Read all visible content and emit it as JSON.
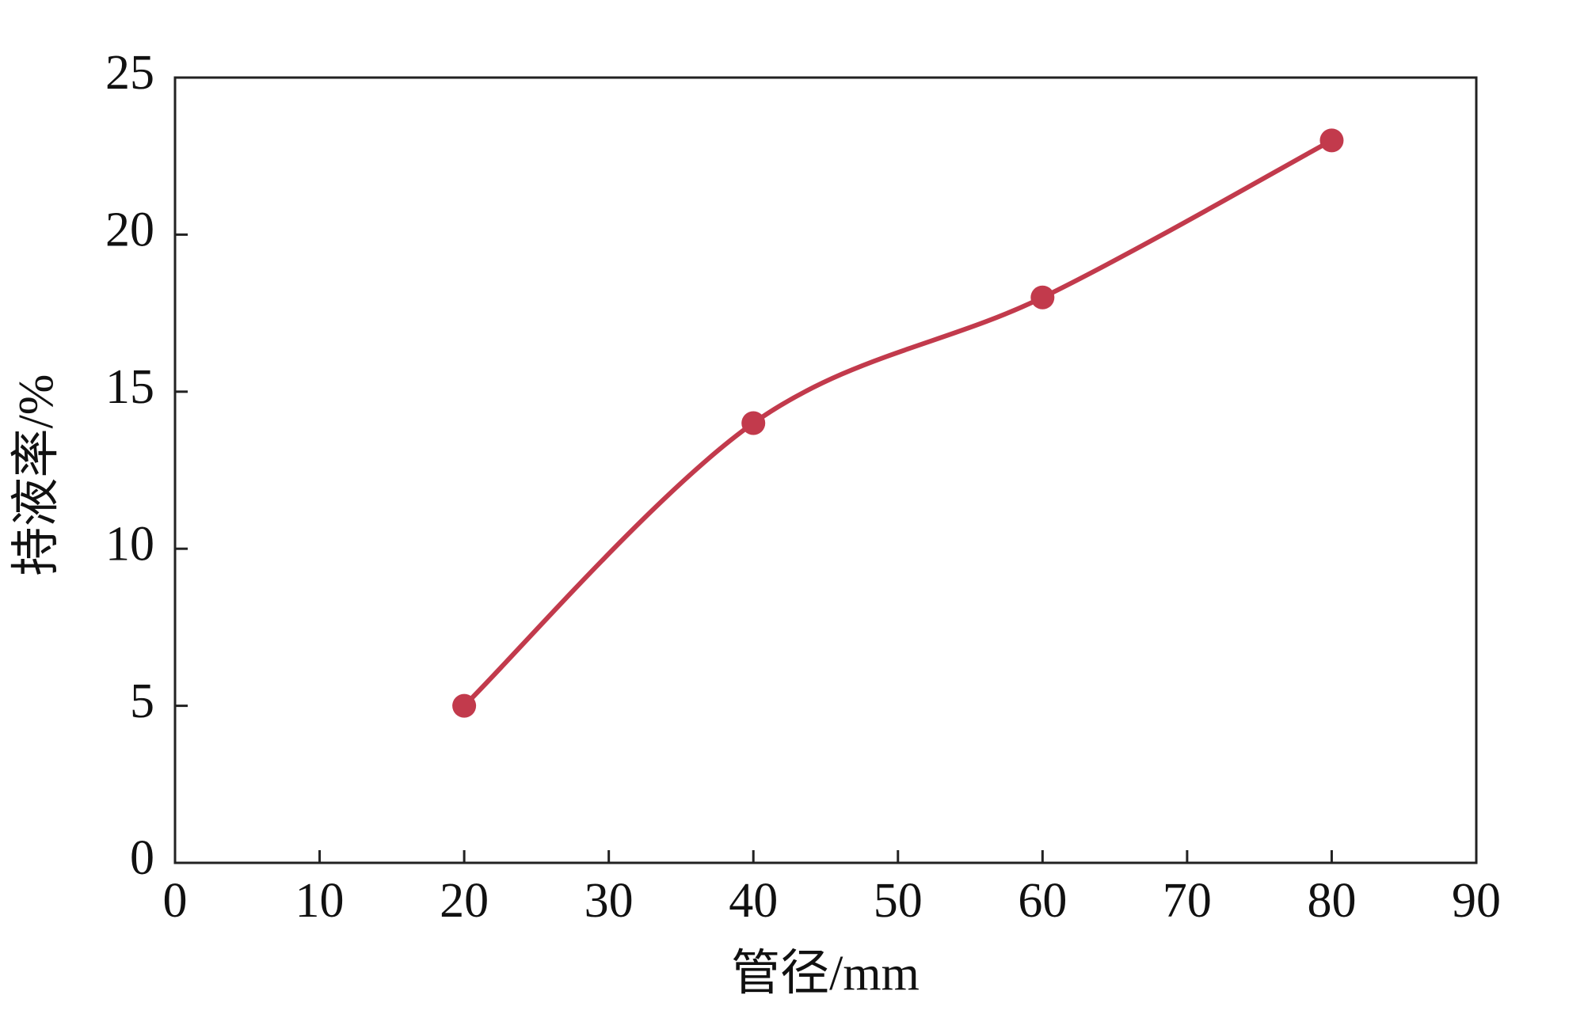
{
  "chart_data": {
    "type": "line",
    "x": [
      20,
      40,
      60,
      80
    ],
    "series": [
      {
        "name": "持液率",
        "color": "#c23a4c",
        "values": [
          5,
          14,
          18,
          23
        ]
      }
    ],
    "xlabel": "管径/mm",
    "ylabel": "持液率/%",
    "xlim": [
      0,
      90
    ],
    "xticks": [
      0,
      10,
      20,
      30,
      40,
      50,
      60,
      70,
      80,
      90
    ],
    "ylim": [
      0,
      25
    ],
    "yticks": [
      0,
      5,
      10,
      15,
      20,
      25
    ],
    "grid": false,
    "smooth": true,
    "markers": true
  }
}
